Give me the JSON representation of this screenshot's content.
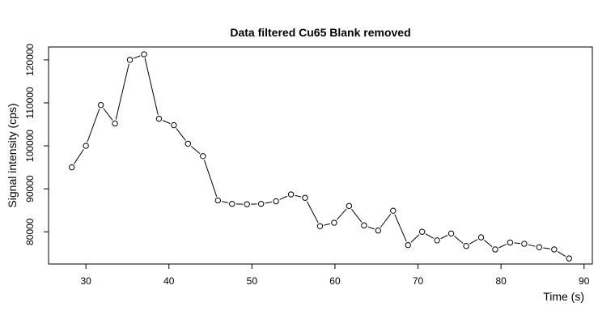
{
  "chart_data": {
    "type": "line",
    "title": "Data filtered Cu65 Blank removed",
    "xlabel": "Time (s)",
    "ylabel": "Signal intensity (cps)",
    "xlim": [
      25.5,
      91
    ],
    "ylim": [
      72500,
      123000
    ],
    "x_ticks": [
      30,
      40,
      50,
      60,
      70,
      80,
      90
    ],
    "y_ticks": [
      80000,
      90000,
      100000,
      110000,
      120000
    ],
    "grid": false,
    "legend": "none",
    "line_color": "#000000",
    "marker": "open-circle",
    "series": [
      {
        "x": [
          28.3,
          30.0,
          31.8,
          33.5,
          35.3,
          37.0,
          38.8,
          40.6,
          42.3,
          44.1,
          45.9,
          47.6,
          49.4,
          51.1,
          52.9,
          54.7,
          56.4,
          58.2,
          59.9,
          61.7,
          63.5,
          65.2,
          67.0,
          68.8,
          70.5,
          72.3,
          74.0,
          75.8,
          77.6,
          79.3,
          81.1,
          82.8,
          84.6,
          86.4,
          88.2
        ],
        "values": [
          95000,
          100000,
          109500,
          105200,
          120000,
          121300,
          106300,
          104800,
          100500,
          97600,
          87300,
          86500,
          86400,
          86500,
          87100,
          88700,
          87900,
          81300,
          82100,
          86000,
          81500,
          80300,
          84900,
          76900,
          80000,
          78000,
          79600,
          76700,
          78700,
          75900,
          77500,
          77200,
          76400,
          75900,
          73800
        ]
      }
    ]
  }
}
